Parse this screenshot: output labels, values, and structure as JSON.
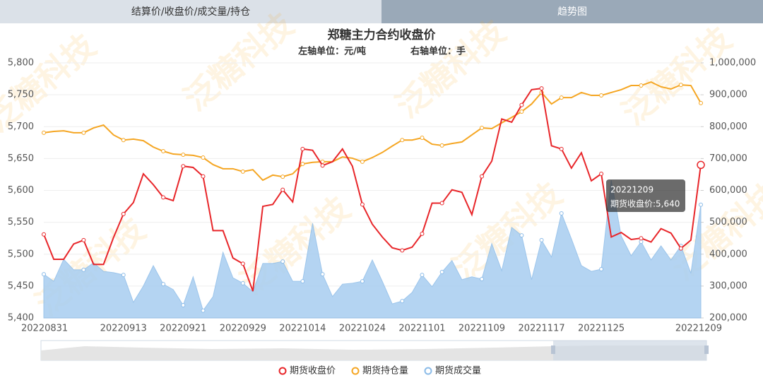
{
  "tabs": [
    "结算价/收盘价/成交量/持仓",
    "趋势图"
  ],
  "watermark": "泛糖科技",
  "chart_data": {
    "type": "line",
    "title": "郑糖主力合约收盘价",
    "subtitle_left": "左轴单位：元/吨",
    "subtitle_right": "右轴单位：手",
    "categories": [
      "20220831",
      null,
      null,
      null,
      null,
      null,
      null,
      null,
      "20220913",
      null,
      null,
      null,
      null,
      null,
      "20220921",
      null,
      null,
      null,
      null,
      null,
      "20220929",
      null,
      null,
      null,
      null,
      null,
      "20221014",
      null,
      null,
      null,
      null,
      null,
      "20221024",
      null,
      null,
      null,
      null,
      null,
      "20221101",
      null,
      null,
      null,
      null,
      null,
      "20221109",
      null,
      null,
      null,
      null,
      null,
      "20221117",
      null,
      null,
      null,
      null,
      null,
      "20221125",
      null,
      null,
      null,
      null,
      null,
      null,
      null,
      null,
      null,
      "20221209"
    ],
    "ylim": [
      5400,
      5800
    ],
    "yticks": [
      {
        "value": 5400,
        "label": "5,400"
      },
      {
        "value": 5450,
        "label": "5,450"
      },
      {
        "value": 5500,
        "label": "5,500"
      },
      {
        "value": 5550,
        "label": "5,550"
      },
      {
        "value": 5600,
        "label": "5,600"
      },
      {
        "value": 5650,
        "label": "5,650"
      },
      {
        "value": 5700,
        "label": "5,700"
      },
      {
        "value": 5750,
        "label": "5,750"
      },
      {
        "value": 5800,
        "label": "5,800"
      }
    ],
    "y2lim": [
      200000,
      1000000
    ],
    "y2ticks": [
      {
        "value": 200000,
        "label": "200,000"
      },
      {
        "value": 300000,
        "label": "300,000"
      },
      {
        "value": 400000,
        "label": "400,000"
      },
      {
        "value": 500000,
        "label": "500,000"
      },
      {
        "value": 600000,
        "label": "600,000"
      },
      {
        "value": 700000,
        "label": "700,000"
      },
      {
        "value": 800000,
        "label": "800,000"
      },
      {
        "value": 900000,
        "label": "900,000"
      },
      {
        "value": 1000000,
        "label": "1,000,000"
      }
    ],
    "grid": true,
    "legend": "bottom",
    "series": [
      {
        "name": "期货收盘价",
        "color": "#e8262a",
        "axis": "y",
        "kind": "line",
        "values": [
          5531,
          5492,
          5492,
          5516,
          5522,
          5484,
          5484,
          5526,
          5563,
          5581,
          5626,
          5609,
          5589,
          5584,
          5638,
          5636,
          5622,
          5537,
          5537,
          5494,
          5485,
          5442,
          5575,
          5578,
          5601,
          5582,
          5665,
          5663,
          5639,
          5645,
          5665,
          5638,
          5578,
          5547,
          5527,
          5510,
          5506,
          5511,
          5532,
          5580,
          5580,
          5601,
          5597,
          5562,
          5622,
          5646,
          5712,
          5707,
          5734,
          5758,
          5760,
          5670,
          5665,
          5635,
          5659,
          5615,
          5626,
          5527,
          5534,
          5523,
          5525,
          5519,
          5540,
          5533,
          5509,
          5522,
          5640
        ]
      },
      {
        "name": "期货持仓量",
        "color": "#f5a623",
        "axis": "y2",
        "kind": "line",
        "values": [
          781000,
          785000,
          787000,
          781000,
          781000,
          796000,
          805000,
          774000,
          758000,
          761000,
          756000,
          736000,
          723000,
          714000,
          712000,
          710000,
          703000,
          681000,
          668000,
          668000,
          659000,
          665000,
          632000,
          648000,
          643000,
          652000,
          683000,
          688000,
          690000,
          690000,
          705000,
          701000,
          690000,
          703000,
          719000,
          739000,
          758000,
          758000,
          765000,
          745000,
          741000,
          747000,
          752000,
          774000,
          796000,
          794000,
          812000,
          829000,
          847000,
          871000,
          907000,
          871000,
          891000,
          891000,
          907000,
          898000,
          898000,
          907000,
          916000,
          929000,
          929000,
          940000,
          925000,
          918000,
          931000,
          929000,
          874000
        ]
      },
      {
        "name": "期货成交量",
        "color": "#a7cdf0",
        "axis": "y2",
        "kind": "area",
        "values": [
          337000,
          315000,
          384000,
          351000,
          351000,
          373000,
          346000,
          342000,
          335000,
          249000,
          300000,
          364000,
          306000,
          289000,
          240000,
          329000,
          223000,
          267000,
          406000,
          326000,
          309000,
          282000,
          371000,
          371000,
          377000,
          315000,
          315000,
          497000,
          337000,
          267000,
          306000,
          309000,
          315000,
          382000,
          315000,
          244000,
          253000,
          280000,
          335000,
          298000,
          344000,
          380000,
          320000,
          329000,
          322000,
          433000,
          348000,
          484000,
          459000,
          320000,
          444000,
          391000,
          528000,
          448000,
          364000,
          346000,
          353000,
          632000,
          457000,
          395000,
          439000,
          382000,
          426000,
          382000,
          426000,
          340000,
          555000
        ]
      }
    ],
    "tooltip": {
      "text": "期货收盘价:5,640"
    }
  }
}
